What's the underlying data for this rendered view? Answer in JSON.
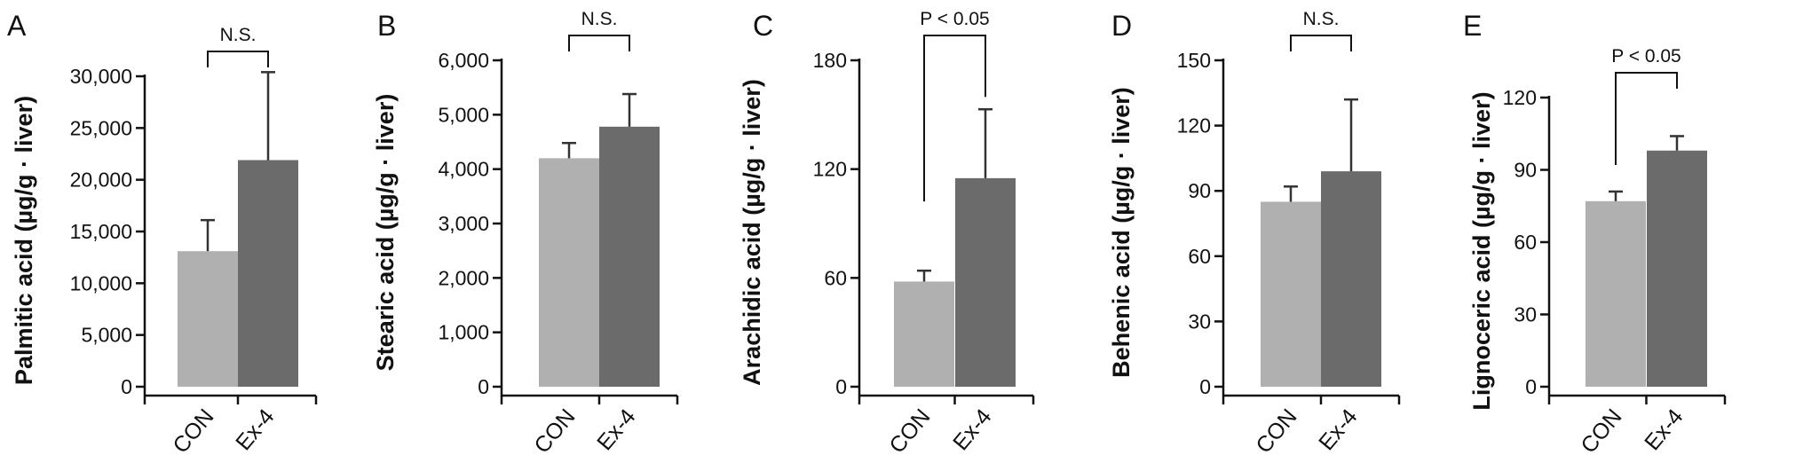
{
  "chart_data": [
    {
      "type": "bar",
      "panel": "A",
      "ylabel": "Palmitic acid (µg/g · liver)",
      "categories": [
        "CON",
        "Ex-4"
      ],
      "values": [
        13100,
        21900
      ],
      "errors": [
        3000,
        8500
      ],
      "ylim": [
        0,
        30000
      ],
      "yticks": [
        0,
        5000,
        10000,
        15000,
        20000,
        25000,
        30000
      ],
      "ytick_labels": [
        "0",
        "5,000",
        "10,000",
        "15,000",
        "20,000",
        "25,000",
        "30,000"
      ],
      "significance": "N.S.",
      "colors": [
        "#b0b0b0",
        "#6b6b6b"
      ]
    },
    {
      "type": "bar",
      "panel": "B",
      "ylabel": "Stearic acid (µg/g · liver)",
      "categories": [
        "CON",
        "Ex-4"
      ],
      "values": [
        4200,
        4780
      ],
      "errors": [
        280,
        600
      ],
      "ylim": [
        0,
        6000
      ],
      "yticks": [
        0,
        1000,
        2000,
        3000,
        4000,
        5000,
        6000
      ],
      "ytick_labels": [
        "0",
        "1,000",
        "2,000",
        "3,000",
        "4,000",
        "5,000",
        "6,000"
      ],
      "significance": "N.S.",
      "colors": [
        "#b0b0b0",
        "#6b6b6b"
      ]
    },
    {
      "type": "bar",
      "panel": "C",
      "ylabel": "Arachidic acid (µg/g · liver)",
      "categories": [
        "CON",
        "Ex-4"
      ],
      "values": [
        58,
        115
      ],
      "errors": [
        6,
        38
      ],
      "ylim": [
        0,
        180
      ],
      "yticks": [
        0,
        60,
        120,
        180
      ],
      "ytick_labels": [
        "0",
        "60",
        "120",
        "180"
      ],
      "significance": "P < 0.05",
      "colors": [
        "#b0b0b0",
        "#6b6b6b"
      ]
    },
    {
      "type": "bar",
      "panel": "D",
      "ylabel": "Behenic acid (µg/g · liver)",
      "categories": [
        "CON",
        "Ex-4"
      ],
      "values": [
        85,
        99
      ],
      "errors": [
        7,
        33
      ],
      "ylim": [
        0,
        150
      ],
      "yticks": [
        0,
        30,
        60,
        90,
        120,
        150
      ],
      "ytick_labels": [
        "0",
        "30",
        "60",
        "90",
        "120",
        "150"
      ],
      "significance": "N.S.",
      "colors": [
        "#b0b0b0",
        "#6b6b6b"
      ]
    },
    {
      "type": "bar",
      "panel": "E",
      "ylabel": "Lignoceric acid (µg/g · liver)",
      "categories": [
        "CON",
        "Ex-4"
      ],
      "values": [
        77,
        98
      ],
      "errors": [
        4,
        6
      ],
      "ylim": [
        0,
        120
      ],
      "yticks": [
        0,
        30,
        60,
        90,
        120
      ],
      "ytick_labels": [
        "0",
        "30",
        "60",
        "90",
        "120"
      ],
      "significance": "P < 0.05",
      "colors": [
        "#b0b0b0",
        "#6b6b6b"
      ]
    }
  ]
}
